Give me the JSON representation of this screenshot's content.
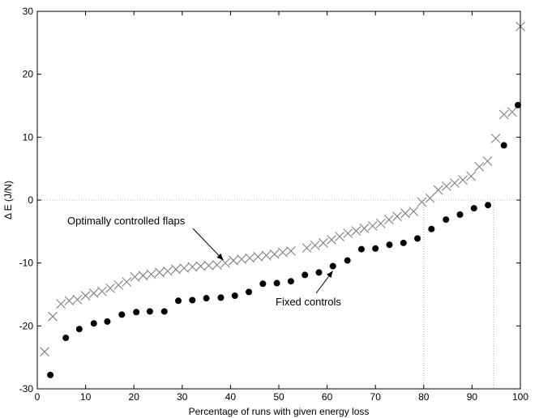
{
  "chart_data": {
    "type": "scatter",
    "xlabel": "Percentage of runs with given energy loss",
    "ylabel": "Δ E (J/N)",
    "xlim": [
      0,
      100
    ],
    "ylim": [
      -30,
      30
    ],
    "xticks": [
      0,
      10,
      20,
      30,
      40,
      50,
      60,
      70,
      80,
      90,
      100
    ],
    "yticks": [
      -30,
      -20,
      -10,
      0,
      10,
      20,
      30
    ],
    "grid": false,
    "reference_lines": {
      "horizontal_y": 0,
      "vertical_x": [
        80,
        94.5
      ],
      "style": "dotted"
    },
    "annotations": [
      {
        "text": "Optimally controlled flaps",
        "points_to_x": 38,
        "points_to_y": -9.8
      },
      {
        "text": "Fixed controls",
        "points_to_x": 61,
        "points_to_y": -10.5
      }
    ],
    "series": [
      {
        "marker": "x",
        "color": "#808080",
        "x": [
          1.5,
          3.2,
          4.9,
          6.6,
          8.3,
          10,
          11.7,
          13.4,
          15.1,
          16.8,
          18.5,
          20.2,
          21.9,
          23.6,
          25.3,
          27,
          28.7,
          30.4,
          32.1,
          33.8,
          35.5,
          37.2,
          38.9,
          40.6,
          42.3,
          44,
          45.7,
          47.4,
          49.1,
          50.8,
          52.5,
          55.8,
          57.5,
          59.2,
          60.9,
          62.6,
          64.3,
          66,
          67.7,
          69.4,
          71.1,
          72.8,
          74.5,
          76.2,
          77.9,
          79.6,
          81.3,
          83,
          84.7,
          86.4,
          88.1,
          89.8,
          91.5,
          93.2,
          94.9,
          96.6,
          98.3,
          100
        ],
        "y": [
          -24.1,
          -18.5,
          -16.5,
          -16,
          -15.8,
          -15.2,
          -14.8,
          -14.5,
          -14,
          -13.5,
          -13,
          -12.2,
          -12,
          -11.8,
          -11.5,
          -11.3,
          -11,
          -10.8,
          -10.6,
          -10.5,
          -10.4,
          -10.3,
          -10,
          -9.6,
          -9.4,
          -9.2,
          -9,
          -8.8,
          -8.6,
          -8.3,
          -8.1,
          -7.6,
          -7.2,
          -6.8,
          -6.3,
          -5.8,
          -5.3,
          -4.9,
          -4.5,
          -4.1,
          -3.7,
          -3.1,
          -2.6,
          -2.1,
          -1.8,
          -0.3,
          0.3,
          1.6,
          2.2,
          2.7,
          3.2,
          3.8,
          5.3,
          6.2,
          9.8,
          13.6,
          14,
          27.6
        ]
      },
      {
        "marker": "filled-circle",
        "color": "#000000",
        "x": [
          2.7,
          5.9,
          8.7,
          11.7,
          14.5,
          17.5,
          20.5,
          23.3,
          26.3,
          29.2,
          32.1,
          35,
          38,
          40.9,
          43.8,
          46.7,
          49.6,
          52.5,
          55.4,
          58.3,
          61.2,
          64.2,
          67.1,
          70,
          72.9,
          75.8,
          78.7,
          81.6,
          84.6,
          87.5,
          90.4,
          93.3,
          96.6,
          99.5
        ],
        "y": [
          -27.8,
          -21.9,
          -20.5,
          -19.6,
          -19.3,
          -18.2,
          -17.8,
          -17.7,
          -17.7,
          -16,
          -15.9,
          -15.6,
          -15.5,
          -15.2,
          -14.6,
          -13.3,
          -13.2,
          -12.9,
          -11.9,
          -11.5,
          -10.5,
          -9.6,
          -7.8,
          -7.7,
          -7.1,
          -6.8,
          -6.1,
          -4.6,
          -3.1,
          -2.3,
          -1.3,
          -0.8,
          8.7,
          15.1
        ]
      }
    ]
  }
}
